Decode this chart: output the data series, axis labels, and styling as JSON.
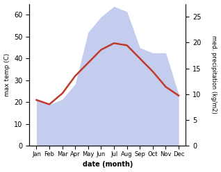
{
  "months": [
    "Jan",
    "Feb",
    "Mar",
    "Apr",
    "May",
    "Jun",
    "Jul",
    "Aug",
    "Sep",
    "Oct",
    "Nov",
    "Dec"
  ],
  "temp_max": [
    21,
    19,
    24,
    32,
    38,
    44,
    47,
    46,
    40,
    34,
    27,
    23
  ],
  "precipitation": [
    9,
    8,
    9,
    12,
    22,
    25,
    27,
    26,
    19,
    18,
    18,
    10
  ],
  "temp_ylim": [
    0,
    65
  ],
  "precip_ylim": [
    0,
    27.5
  ],
  "temp_yticks": [
    0,
    10,
    20,
    30,
    40,
    50,
    60
  ],
  "precip_yticks": [
    0,
    5,
    10,
    15,
    20,
    25
  ],
  "temp_color": "#c0392b",
  "precip_fill_color": "#b0bde8",
  "precip_fill_alpha": 0.75,
  "xlabel": "date (month)",
  "ylabel_left": "max temp (C)",
  "ylabel_right": "med. precipitation (kg/m2)",
  "bg_color": "#ffffff"
}
